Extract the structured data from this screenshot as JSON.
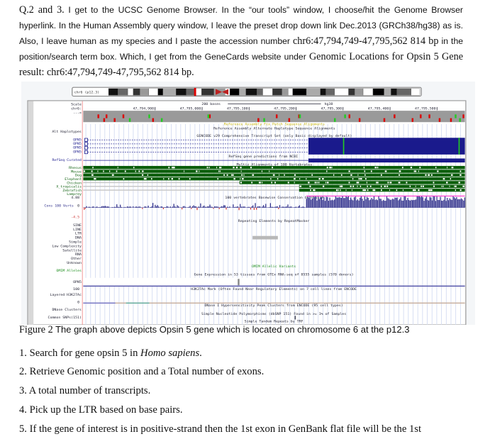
{
  "intro": {
    "segments": [
      {
        "text": "Q.2 and 3.",
        "serif": true
      },
      {
        "text": " I get to the UCSC Genome Browser. In the “our tools” window, I choose/hit the Genome Browser hyperlink. In the Human Assembly query window, I leave the preset drop down link Dec.2013 (GRCh38/hg38) as is. Also, I leave human as my species and I paste the accession number ",
        "serif": false
      },
      {
        "text": "chr6:47,794,749-47,795,562 814 bp",
        "serif": true
      },
      {
        "text": " in the position/search term box. Which, I get from the GeneCards website under ",
        "serif": false
      },
      {
        "text": "Genomic Locations for Opsin 5 Gene result: chr6:47,794,749-47,795,562 814 bp.",
        "serif": true
      }
    ]
  },
  "browser": {
    "ideogram_label": "chr6 (p12.3)",
    "scale_label": "Scale",
    "chrom_label": "chr6:",
    "strand_label": "--->",
    "scale_bar_text": "200 bases",
    "assembly": "hg38",
    "ticks": [
      "47,794,900",
      "47,795,000",
      "47,795,100",
      "47,795,200",
      "47,795,300",
      "47,795,400",
      "47,795,500"
    ],
    "track_titles": {
      "fix_patch": "Reference Assembly Fix Patch Sequence Alignments",
      "alt_haplotype": "Reference Assembly Alternate Haplotype Sequence Alignments",
      "gencode": "GENCODE v29 Comprehensive Transcript Set (only Basic displayed by default)",
      "refseq_pred": "RefSeq gene predictions from NCBI",
      "multiz": "Multiz Alignments of 100 Vertebrates",
      "phylop": "100 vertebrates Basewise Conservation by PhyloP",
      "repeats": "Repeating Elements by RepeatMasker",
      "omim": "OMIM Allelic Variants",
      "gtex": "Gene Expression in 53 tissues from GTEx RNA-seq of 8555 samples (570 donors)",
      "h3k27ac": "H3K27Ac Mark (Often Found Near Regulatory Elements) on 7 cell lines from ENCODE",
      "dnase": "DNase I Hypersensitivity Peak Clusters from ENCODE (95 cell types)",
      "snp": "Simple Nucleotide Polymorphisms (dbSNP 151) Found in >= 1% of Samples",
      "trf": "Simple Tandem Repeats by TRF"
    },
    "labels": {
      "alt_haplotypes": "Alt Haplotypes",
      "transcripts": [
        "OPN5",
        "OPN5",
        "OPN5",
        "OPN5"
      ],
      "refseq_curated": "RefSeq Curated",
      "species": [
        "Rhesus",
        "Mouse",
        "Dog",
        "Elephant",
        "Chicken",
        "X_tropicalis",
        "Zebrafish",
        "Lamprey"
      ],
      "phylop_max": "4.88",
      "cons": "Cons 100 Verts",
      "phylop_zero": "0",
      "phylop_min": "-4.5",
      "repeat_classes": [
        "SINE",
        "LINE",
        "LTR",
        "DNA",
        "Simple",
        "Low Complexity",
        "Satellite",
        "RNA",
        "Other",
        "Unknown"
      ],
      "omim_alleles": "OMIM Alleles",
      "gtex_gene": "OPN5",
      "h3k_max": "100",
      "layered": "Layered H3K27Ac",
      "h3k_zero": "0",
      "dnase_clusters": "DNase Clusters",
      "common_snps": "Common SNPs(151)"
    },
    "colors": {
      "gene": "#1a1a8c",
      "multiz": "#0b5e0b",
      "conservation": "#2e2e8a",
      "omim": "#1a8c1a",
      "mismatch_red": "#dd0000",
      "mismatch_green": "#22cc22"
    }
  },
  "caption": {
    "figure": "Figure 2",
    "text": " The graph above depicts Opsin 5 gene which is located on chromosome 6 at the p12.3"
  },
  "steps": [
    {
      "prefix": "1. Search for gene opsin 5 in ",
      "italic": "Homo sapiens",
      "suffix": "."
    },
    {
      "prefix": "2. Retrieve Genomic position and a Total number of exons.",
      "italic": "",
      "suffix": ""
    },
    {
      "prefix": "3. A total number of transcripts.",
      "italic": "",
      "suffix": ""
    },
    {
      "prefix": "4. Pick up the LTR based on base pairs.",
      "italic": "",
      "suffix": ""
    },
    {
      "prefix": "5. If the gene of interest is in positive-strand then the 1st exon in GenBank flat file will be the 1st",
      "italic": "",
      "suffix": ""
    }
  ]
}
